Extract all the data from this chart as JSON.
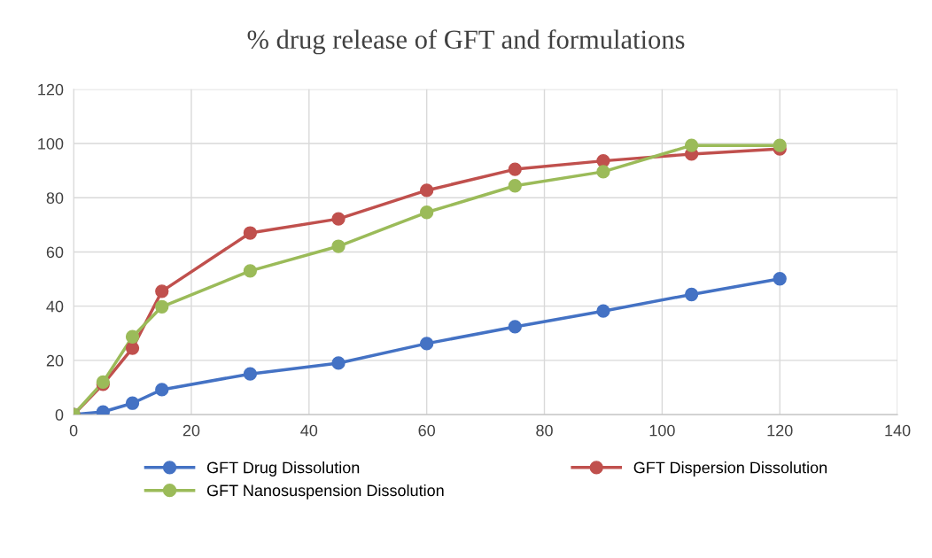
{
  "chart_data": {
    "type": "line",
    "title": "% drug release of GFT and formulations",
    "x": [
      0,
      5,
      10,
      15,
      30,
      45,
      60,
      75,
      90,
      105,
      120
    ],
    "series": [
      {
        "name": "GFT Drug Dissolution",
        "color": "#4472c4",
        "values": [
          0,
          1,
          4.2,
          9.2,
          15,
          19,
          26.2,
          32.4,
          38.2,
          44.3,
          50.1
        ]
      },
      {
        "name": "GFT Dispersion Dissolution",
        "color": "#c0504d",
        "values": [
          0,
          11.2,
          24.5,
          45.5,
          67,
          72.2,
          82.7,
          90.5,
          93.6,
          96.1,
          98
        ]
      },
      {
        "name": "GFT Nanosuspension Dissolution",
        "color": "#9bbb59",
        "values": [
          0,
          12,
          28.7,
          39.8,
          53,
          62.1,
          74.6,
          84.4,
          89.6,
          99.3,
          99.3
        ]
      }
    ],
    "xlim": [
      0,
      140
    ],
    "xticks": [
      0,
      20,
      40,
      60,
      80,
      100,
      120,
      140
    ],
    "ylim": [
      0,
      120
    ],
    "yticks": [
      0,
      20,
      40,
      60,
      80,
      100,
      120
    ],
    "grid": true,
    "legend": "bottom",
    "marker": "circle",
    "line_style": "solid"
  }
}
